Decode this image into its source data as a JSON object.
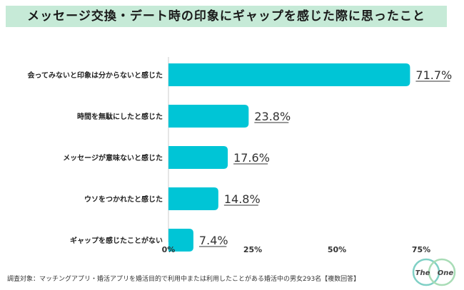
{
  "title": "メッセージ交換・デート時の印象にギャップを感じた際に思ったこと",
  "chart_data": {
    "type": "bar",
    "orientation": "horizontal",
    "categories": [
      "会ってみないと印象は分からないと感じた",
      "時間を無駄にしたと感じた",
      "メッセージが意味ないと感じた",
      "ウソをつかれたと感じた",
      "ギャップを感じたことがない"
    ],
    "values": [
      71.7,
      23.8,
      17.6,
      14.8,
      7.4
    ],
    "value_labels": [
      "71.7%",
      "23.8%",
      "17.6%",
      "14.8%",
      "7.4%"
    ],
    "xlim": [
      0,
      75
    ],
    "ticks": [
      0,
      25,
      50,
      75
    ],
    "tick_labels": [
      "0%",
      "25%",
      "50%",
      "75%"
    ],
    "grid": false,
    "bar_color": "#00c5d6"
  },
  "footnote": "調査対象：マッチングアプリ・婚活アプリを婚活目的で利用中または利用したことがある婚活中の男女293名【複数回答】",
  "logo": {
    "left_text": "The",
    "right_text": "One",
    "colors": [
      "#7fd0c5",
      "#a8dcb6"
    ]
  }
}
